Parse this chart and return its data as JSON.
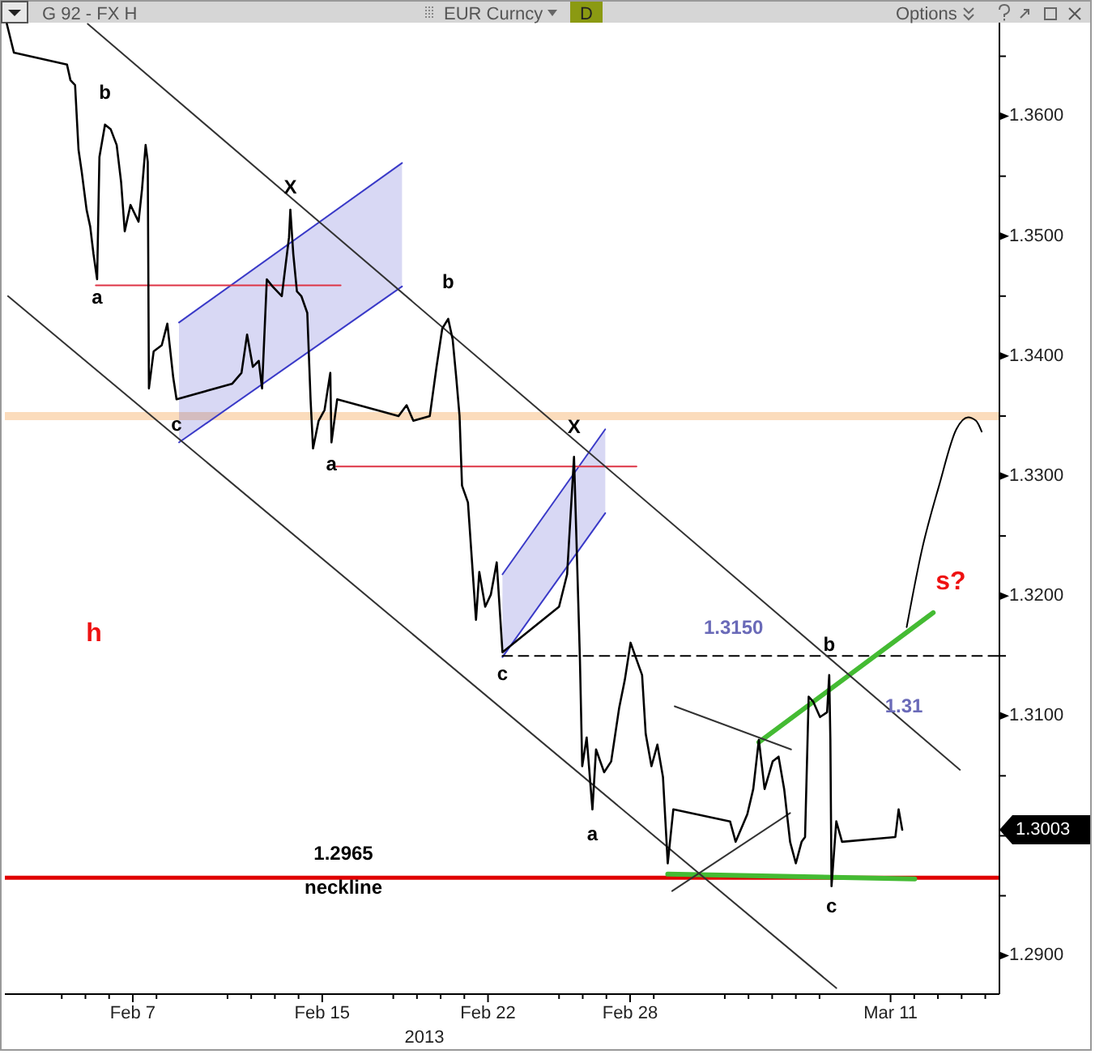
{
  "chart_data": {
    "type": "line",
    "xlabel": "2013",
    "x": [
      "2013-02-01T16:20",
      "2013-02-01T23:30",
      "2013-02-04T05:20",
      "2013-02-04T08:50",
      "2013-02-04T13:30",
      "2013-02-04T17:00",
      "2013-02-04T20:20",
      "2013-02-05T01:10",
      "2013-02-05T04:50",
      "2013-02-05T08:10",
      "2013-02-05T11:50",
      "2013-02-05T14:10",
      "2013-02-05T19:50",
      "2013-02-06T01:40",
      "2013-02-06T07:40",
      "2013-02-06T12:10",
      "2013-02-06T15:50",
      "2013-02-06T21:40",
      "2013-02-07T05:50",
      "2013-02-07T09:20",
      "2013-02-07T13:00",
      "2013-02-07T15:10",
      "2013-02-07T16:20",
      "2013-02-07T21:10",
      "2013-02-08T05:20",
      "2013-02-08T11:00",
      "2013-02-08T17:00",
      "2013-02-08T20:20",
      "2013-02-11T04:50",
      "2013-02-11T14:10",
      "2013-02-11T19:50",
      "2013-02-12T01:40",
      "2013-02-12T07:40",
      "2013-02-12T11:00",
      "2013-02-12T15:50",
      "2013-02-12T21:40",
      "2013-02-13T07:00",
      "2013-02-13T14:20",
      "2013-02-13T15:40",
      "2013-02-13T18:40",
      "2013-02-13T22:20",
      "2013-02-14T02:50",
      "2013-02-14T08:50",
      "2013-02-14T12:10",
      "2013-02-14T14:40",
      "2013-02-14T20:20",
      "2013-02-15T02:20",
      "2013-02-15T08:10",
      "2013-02-15T09:20",
      "2013-02-15T15:10",
      "2013-02-18T05:20",
      "2013-02-18T13:30",
      "2013-02-18T20:20",
      "2013-02-19T13:00",
      "2013-02-19T19:50",
      "2013-02-20T01:40",
      "2013-02-20T07:40",
      "2013-02-20T12:10",
      "2013-02-20T15:50",
      "2013-02-20T19:10",
      "2013-02-20T21:40",
      "2013-02-21T03:40",
      "2013-02-21T07:00",
      "2013-02-21T11:50",
      "2013-02-21T15:10",
      "2013-02-21T21:10",
      "2013-02-22T02:50",
      "2013-02-22T08:50",
      "2013-02-22T14:40",
      "2013-02-25T00:00",
      "2013-02-25T08:10",
      "2013-02-25T15:10",
      "2013-02-25T17:30",
      "2013-02-25T21:10",
      "2013-02-25T23:30",
      "2013-02-26T04:00",
      "2013-02-26T09:50",
      "2013-02-26T13:30",
      "2013-02-26T21:40",
      "2013-02-27T04:50",
      "2013-02-27T13:00",
      "2013-02-27T18:40",
      "2013-02-28T00:30",
      "2013-02-28T06:30",
      "2013-02-28T12:10",
      "2013-02-28T15:50",
      "2013-02-28T21:40",
      "2013-03-01T03:40",
      "2013-03-01T09:20",
      "2013-03-01T14:10",
      "2013-03-01T19:50",
      "2013-03-04T05:20",
      "2013-03-04T11:00",
      "2013-03-04T22:50",
      "2013-03-05T04:50",
      "2013-03-05T10:30",
      "2013-03-05T16:20",
      "2013-03-06T00:30",
      "2013-03-06T06:30",
      "2013-03-06T12:10",
      "2013-03-06T18:10",
      "2013-03-07T00:00",
      "2013-03-07T05:50",
      "2013-03-07T09:20",
      "2013-03-07T13:00",
      "2013-03-07T17:30",
      "2013-03-08T00:30",
      "2013-03-08T07:40",
      "2013-03-08T09:50",
      "2013-03-08T11:00",
      "2013-03-08T12:10",
      "2013-03-08T17:00",
      "2013-03-08T22:50",
      "2013-03-11T04:50",
      "2013-03-11T08:10",
      "2013-03-11T11:50"
    ],
    "series": [
      {
        "color": "#000000",
        "values": [
          1.3677,
          1.3653,
          1.3643,
          1.363,
          1.3626,
          1.3572,
          1.3553,
          1.3522,
          1.3508,
          1.3485,
          1.3464,
          1.3566,
          1.3593,
          1.3589,
          1.3576,
          1.3545,
          1.3504,
          1.3526,
          1.3512,
          1.3539,
          1.3576,
          1.3562,
          1.3373,
          1.3404,
          1.3409,
          1.3427,
          1.3382,
          1.3364,
          1.3377,
          1.3386,
          1.3418,
          1.3391,
          1.3396,
          1.3373,
          1.3464,
          1.3458,
          1.345,
          1.3499,
          1.3522,
          1.3485,
          1.3454,
          1.345,
          1.3436,
          1.3364,
          1.3323,
          1.3346,
          1.3355,
          1.3386,
          1.3328,
          1.3364,
          1.335,
          1.3359,
          1.3346,
          1.335,
          1.3391,
          1.3423,
          1.3431,
          1.3414,
          1.3382,
          1.335,
          1.3292,
          1.3278,
          1.3238,
          1.318,
          1.322,
          1.3191,
          1.3201,
          1.3228,
          1.3153,
          1.3191,
          1.3218,
          1.3316,
          1.3251,
          1.3147,
          1.3058,
          1.3082,
          1.3022,
          1.3072,
          1.3053,
          1.3062,
          1.3107,
          1.313,
          1.3161,
          1.3147,
          1.3134,
          1.3085,
          1.3058,
          1.3076,
          1.3049,
          1.2977,
          1.3022,
          1.3012,
          1.2995,
          1.3018,
          1.3039,
          1.308,
          1.3039,
          1.3062,
          1.3066,
          1.3039,
          1.2995,
          1.2977,
          1.2995,
          1.2999,
          1.3116,
          1.3112,
          1.3099,
          1.3103,
          1.3134,
          1.308,
          1.2958,
          1.3012,
          1.2995,
          1.2999,
          1.3022,
          1.3005
        ]
      },
      {
        "type": "line",
        "color": "#333333",
        "x": [
          "2013-02-05T02:20",
          "2013-03-13T22:20"
        ],
        "values": [
          1.3677,
          1.3055
        ]
      },
      {
        "type": "line",
        "color": "#333333",
        "x": [
          "2013-02-01T17:30",
          "2013-03-08T17:00"
        ],
        "values": [
          1.345,
          1.2873
        ]
      },
      {
        "type": "line",
        "color": "#333333",
        "x": [
          "2013-03-01T21:10",
          "2013-03-06T19:10"
        ],
        "values": [
          1.3108,
          1.3072
        ]
      },
      {
        "type": "line",
        "color": "#333333",
        "x": [
          "2013-03-01T18:40",
          "2013-03-06T18:10"
        ],
        "values": [
          1.2954,
          1.3019
        ]
      },
      {
        "type": "line",
        "color": "#44bb33",
        "x": [
          "2013-03-05T10:30",
          "2013-03-12T19:10"
        ],
        "values": [
          1.3078,
          1.3186
        ]
      },
      {
        "type": "line",
        "color": "#44bb33",
        "x": [
          "2013-03-01T14:10",
          "2013-03-12T00:30"
        ],
        "values": [
          1.2968,
          1.2964
        ]
      },
      {
        "type": "line",
        "color": "#dd3344",
        "x": [
          "2013-02-05T10:30",
          "2013-02-15T18:40"
        ],
        "values": [
          1.3459,
          1.3459
        ]
      },
      {
        "type": "line",
        "color": "#dd3344",
        "x": [
          "2013-02-15T14:10",
          "2013-02-28T06:30"
        ],
        "values": [
          1.3308,
          1.3308
        ]
      },
      {
        "type": "line",
        "color": "#000000",
        "line_style": "dashed",
        "x": [
          "2013-02-22T14:40",
          "2013-03-15T14:20"
        ],
        "values": [
          1.315,
          1.315
        ]
      },
      {
        "type": "line",
        "color": "#000000",
        "x": [
          "2013-03-11T16:20",
          "2013-03-12T07:40",
          "2013-03-13T01:10",
          "2013-03-13T18:40",
          "2013-03-14T06:30",
          "2013-03-14T14:40",
          "2013-03-14T20:20"
        ],
        "values": [
          1.3174,
          1.3238,
          1.3292,
          1.3339,
          1.3349,
          1.3346,
          1.3337
        ]
      },
      {
        "type": "line",
        "color": "#3a3ac8",
        "x": [
          "2013-02-08T22:50",
          "2013-02-18T08:50"
        ],
        "values": [
          1.3428,
          1.3561
        ]
      },
      {
        "type": "line",
        "color": "#3a3ac8",
        "x": [
          "2013-02-08T22:50",
          "2013-02-18T08:50"
        ],
        "values": [
          1.3328,
          1.3458
        ]
      },
      {
        "type": "line",
        "color": "#3a3ac8",
        "x": [
          "2013-02-22T14:40",
          "2013-02-26T22:50"
        ],
        "values": [
          1.3218,
          1.3339
        ]
      },
      {
        "type": "line",
        "color": "#3a3ac8",
        "x": [
          "2013-02-22T14:40",
          "2013-02-26T22:50"
        ],
        "values": [
          1.3149,
          1.3269
        ]
      }
    ],
    "xlim": [
      "2013-02-01T14:20",
      "2013-03-15T14:20"
    ],
    "xticks": [
      {
        "value": "2013-02-04",
        "label": null
      },
      {
        "value": "2013-02-05",
        "label": null
      },
      {
        "value": "2013-02-06",
        "label": null
      },
      {
        "value": "2013-02-07",
        "label": "Feb 7"
      },
      {
        "value": "2013-02-08",
        "label": null
      },
      {
        "value": "2013-02-11",
        "label": null
      },
      {
        "value": "2013-02-12",
        "label": null
      },
      {
        "value": "2013-02-13",
        "label": null
      },
      {
        "value": "2013-02-14",
        "label": null
      },
      {
        "value": "2013-02-15",
        "label": "Feb 15"
      },
      {
        "value": "2013-02-18",
        "label": null
      },
      {
        "value": "2013-02-19",
        "label": null
      },
      {
        "value": "2013-02-20",
        "label": null
      },
      {
        "value": "2013-02-21",
        "label": null
      },
      {
        "value": "2013-02-22",
        "label": "Feb 22"
      },
      {
        "value": "2013-02-25",
        "label": null
      },
      {
        "value": "2013-02-26",
        "label": null
      },
      {
        "value": "2013-02-27",
        "label": null
      },
      {
        "value": "2013-02-28",
        "label": "Feb 28"
      },
      {
        "value": "2013-03-01",
        "label": null
      },
      {
        "value": "2013-03-04",
        "label": null
      },
      {
        "value": "2013-03-05",
        "label": null
      },
      {
        "value": "2013-03-06",
        "label": null
      },
      {
        "value": "2013-03-07",
        "label": null
      },
      {
        "value": "2013-03-08",
        "label": null
      },
      {
        "value": "2013-03-11",
        "label": "Mar 11"
      },
      {
        "value": "2013-03-12",
        "label": null
      },
      {
        "value": "2013-03-13",
        "label": null
      },
      {
        "value": "2013-03-14",
        "label": null
      },
      {
        "value": "2013-03-15",
        "label": null
      }
    ],
    "ylim": [
      1.2868,
      1.3678
    ],
    "yticks": [
      {
        "value": 1.29,
        "label": "1.2900"
      },
      {
        "value": 1.295,
        "label": null
      },
      {
        "value": 1.3,
        "label": null
      },
      {
        "value": 1.305,
        "label": null
      },
      {
        "value": 1.31,
        "label": "1.3100"
      },
      {
        "value": 1.315,
        "label": null
      },
      {
        "value": 1.32,
        "label": "1.3200"
      },
      {
        "value": 1.325,
        "label": null
      },
      {
        "value": 1.33,
        "label": "1.3300"
      },
      {
        "value": 1.335,
        "label": null
      },
      {
        "value": 1.34,
        "label": "1.3400"
      },
      {
        "value": 1.345,
        "label": null
      },
      {
        "value": 1.35,
        "label": "1.3500"
      },
      {
        "value": 1.355,
        "label": null
      },
      {
        "value": 1.36,
        "label": "1.3600"
      },
      {
        "value": 1.365,
        "label": null
      }
    ],
    "ref_lines": [
      {
        "axis": "y",
        "value": 1.2965,
        "color": "#e00000",
        "label": "1.2965"
      },
      {
        "axis": "y",
        "value": 1.335,
        "color": "#fbdcbc"
      }
    ],
    "annotations": [
      "G 92 - FX H",
      "EUR Curncy",
      "D",
      "Options",
      {
        "text": "b",
        "x": "2013-02-05T19:50",
        "y": 1.3593
      },
      {
        "text": "a",
        "x": "2013-02-05T11:50",
        "y": 1.3464
      },
      {
        "text": "c",
        "x": "2013-02-08T20:20",
        "y": 1.3364
      },
      {
        "text": "X",
        "x": "2013-02-13T15:40",
        "y": 1.3522
      },
      {
        "text": "a",
        "x": "2013-02-15T09:20",
        "y": 1.3328
      },
      {
        "text": "b",
        "x": "2013-02-20T07:40",
        "y": 1.3431
      },
      {
        "text": "X",
        "x": "2013-02-25T15:10",
        "y": 1.3316
      },
      {
        "text": "c",
        "x": "2013-02-22T14:40",
        "y": 1.3153
      },
      {
        "text": "a",
        "x": "2013-02-26T09:50",
        "y": 1.3022
      },
      {
        "text": "b",
        "x": "2013-03-08T09:50",
        "y": 1.3134
      },
      {
        "text": "c",
        "x": "2013-03-08T12:10",
        "y": 1.2958
      },
      {
        "text": "1.3150",
        "x": "2013-03-04T08:50",
        "y": 1.315
      },
      "h",
      "s?",
      "1.31",
      "neckline",
      "1.3003"
    ]
  }
}
